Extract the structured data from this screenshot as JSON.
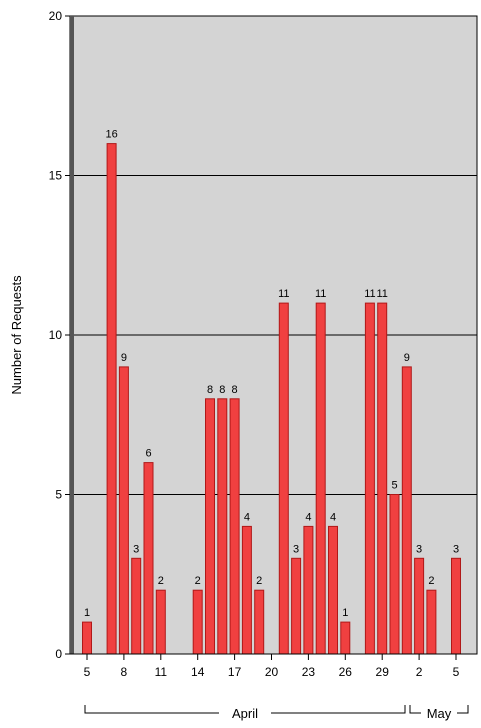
{
  "chart_data": {
    "type": "bar",
    "ylabel": "Number of Requests",
    "ylim": [
      0,
      20
    ],
    "yticks": [
      "0",
      "5",
      "10",
      "15",
      "20"
    ],
    "grid": true,
    "x_tick_labels": [
      "5",
      "8",
      "11",
      "14",
      "17",
      "20",
      "23",
      "26",
      "29",
      "2",
      "5"
    ],
    "groups": [
      {
        "label": "April"
      },
      {
        "label": "May"
      }
    ],
    "bars": [
      {
        "date": "Apr 5",
        "value": 1,
        "label": "1"
      },
      {
        "date": "Apr 7",
        "value": 16,
        "label": "16"
      },
      {
        "date": "Apr 8",
        "value": 9,
        "label": "9"
      },
      {
        "date": "Apr 9",
        "value": 3,
        "label": "3"
      },
      {
        "date": "Apr 10",
        "value": 6,
        "label": "6"
      },
      {
        "date": "Apr 11",
        "value": 2,
        "label": "2"
      },
      {
        "date": "Apr 14",
        "value": 2,
        "label": "2"
      },
      {
        "date": "Apr 15",
        "value": 8,
        "label": "8"
      },
      {
        "date": "Apr 16",
        "value": 8,
        "label": "8"
      },
      {
        "date": "Apr 17",
        "value": 8,
        "label": "8"
      },
      {
        "date": "Apr 18",
        "value": 4,
        "label": "4"
      },
      {
        "date": "Apr 19",
        "value": 2,
        "label": "2"
      },
      {
        "date": "Apr 21",
        "value": 11,
        "label": "11"
      },
      {
        "date": "Apr 22",
        "value": 3,
        "label": "3"
      },
      {
        "date": "Apr 23",
        "value": 4,
        "label": "4"
      },
      {
        "date": "Apr 24",
        "value": 11,
        "label": "11"
      },
      {
        "date": "Apr 25",
        "value": 4,
        "label": "4"
      },
      {
        "date": "Apr 26",
        "value": 1,
        "label": "1"
      },
      {
        "date": "Apr 28",
        "value": 11,
        "label": "11"
      },
      {
        "date": "Apr 29",
        "value": 11,
        "label": "11"
      },
      {
        "date": "Apr 30",
        "value": 5,
        "label": "5"
      },
      {
        "date": "May 1",
        "value": 9,
        "label": "9"
      },
      {
        "date": "May 2",
        "value": 3,
        "label": "3"
      },
      {
        "date": "May 3",
        "value": 2,
        "label": "2"
      },
      {
        "date": "May 5",
        "value": 3,
        "label": "3"
      }
    ],
    "colors": {
      "plot_bg": "#d4d4d4",
      "bar_fill": "#f04040",
      "bar_stroke": "#b01818",
      "grid": "#000000"
    }
  }
}
